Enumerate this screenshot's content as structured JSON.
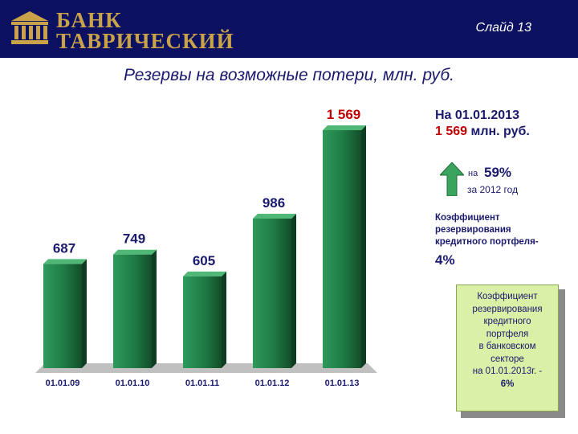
{
  "header": {
    "bank_line1": "БАНК",
    "bank_line2": "ТАВРИЧЕСКИЙ",
    "slide_label": "Слайд 13",
    "logo": "bank-building-logo"
  },
  "colors": {
    "header_bg": "#0b1160",
    "brand_gold": "#c9a24a",
    "bar_green": "#1f7a45",
    "text_navy": "#1a1a6e",
    "value_red": "#c00000",
    "arrow_green": "#3aa45e",
    "note_bg": "#d9f0a6"
  },
  "chart_data": {
    "type": "bar",
    "title": "Резервы на возможные потери, млн. руб.",
    "categories": [
      "01.01.09",
      "01.01.10",
      "01.01.11",
      "01.01.12",
      "01.01.13"
    ],
    "values": [
      687,
      749,
      605,
      986,
      1569
    ],
    "value_labels": [
      "687",
      "749",
      "605",
      "986",
      "1 569"
    ],
    "value_label_colors": [
      "#1a1a6e",
      "#1a1a6e",
      "#1a1a6e",
      "#1a1a6e",
      "#c00000"
    ],
    "ylim": [
      0,
      1569
    ],
    "xlabel": "",
    "ylabel": "",
    "grid": false,
    "legend": "none"
  },
  "info": {
    "date_line": "На 01.01.2013",
    "amount_value": "1 569",
    "amount_unit": " млн. руб.",
    "growth_pre": "на",
    "growth_value": "59%",
    "growth_period": "за 2012 год",
    "growth_icon": "up-arrow-icon",
    "coef_label_lines": [
      "Коэффициент",
      "резервирования",
      "кредитного портфеля-"
    ],
    "coef_value": "4%"
  },
  "note": {
    "lines": [
      "Коэффициент",
      "резервирования",
      "кредитного",
      "портфеля",
      "в банковском",
      "секторе",
      "на 01.01.2013г. -"
    ],
    "value": "6%"
  }
}
